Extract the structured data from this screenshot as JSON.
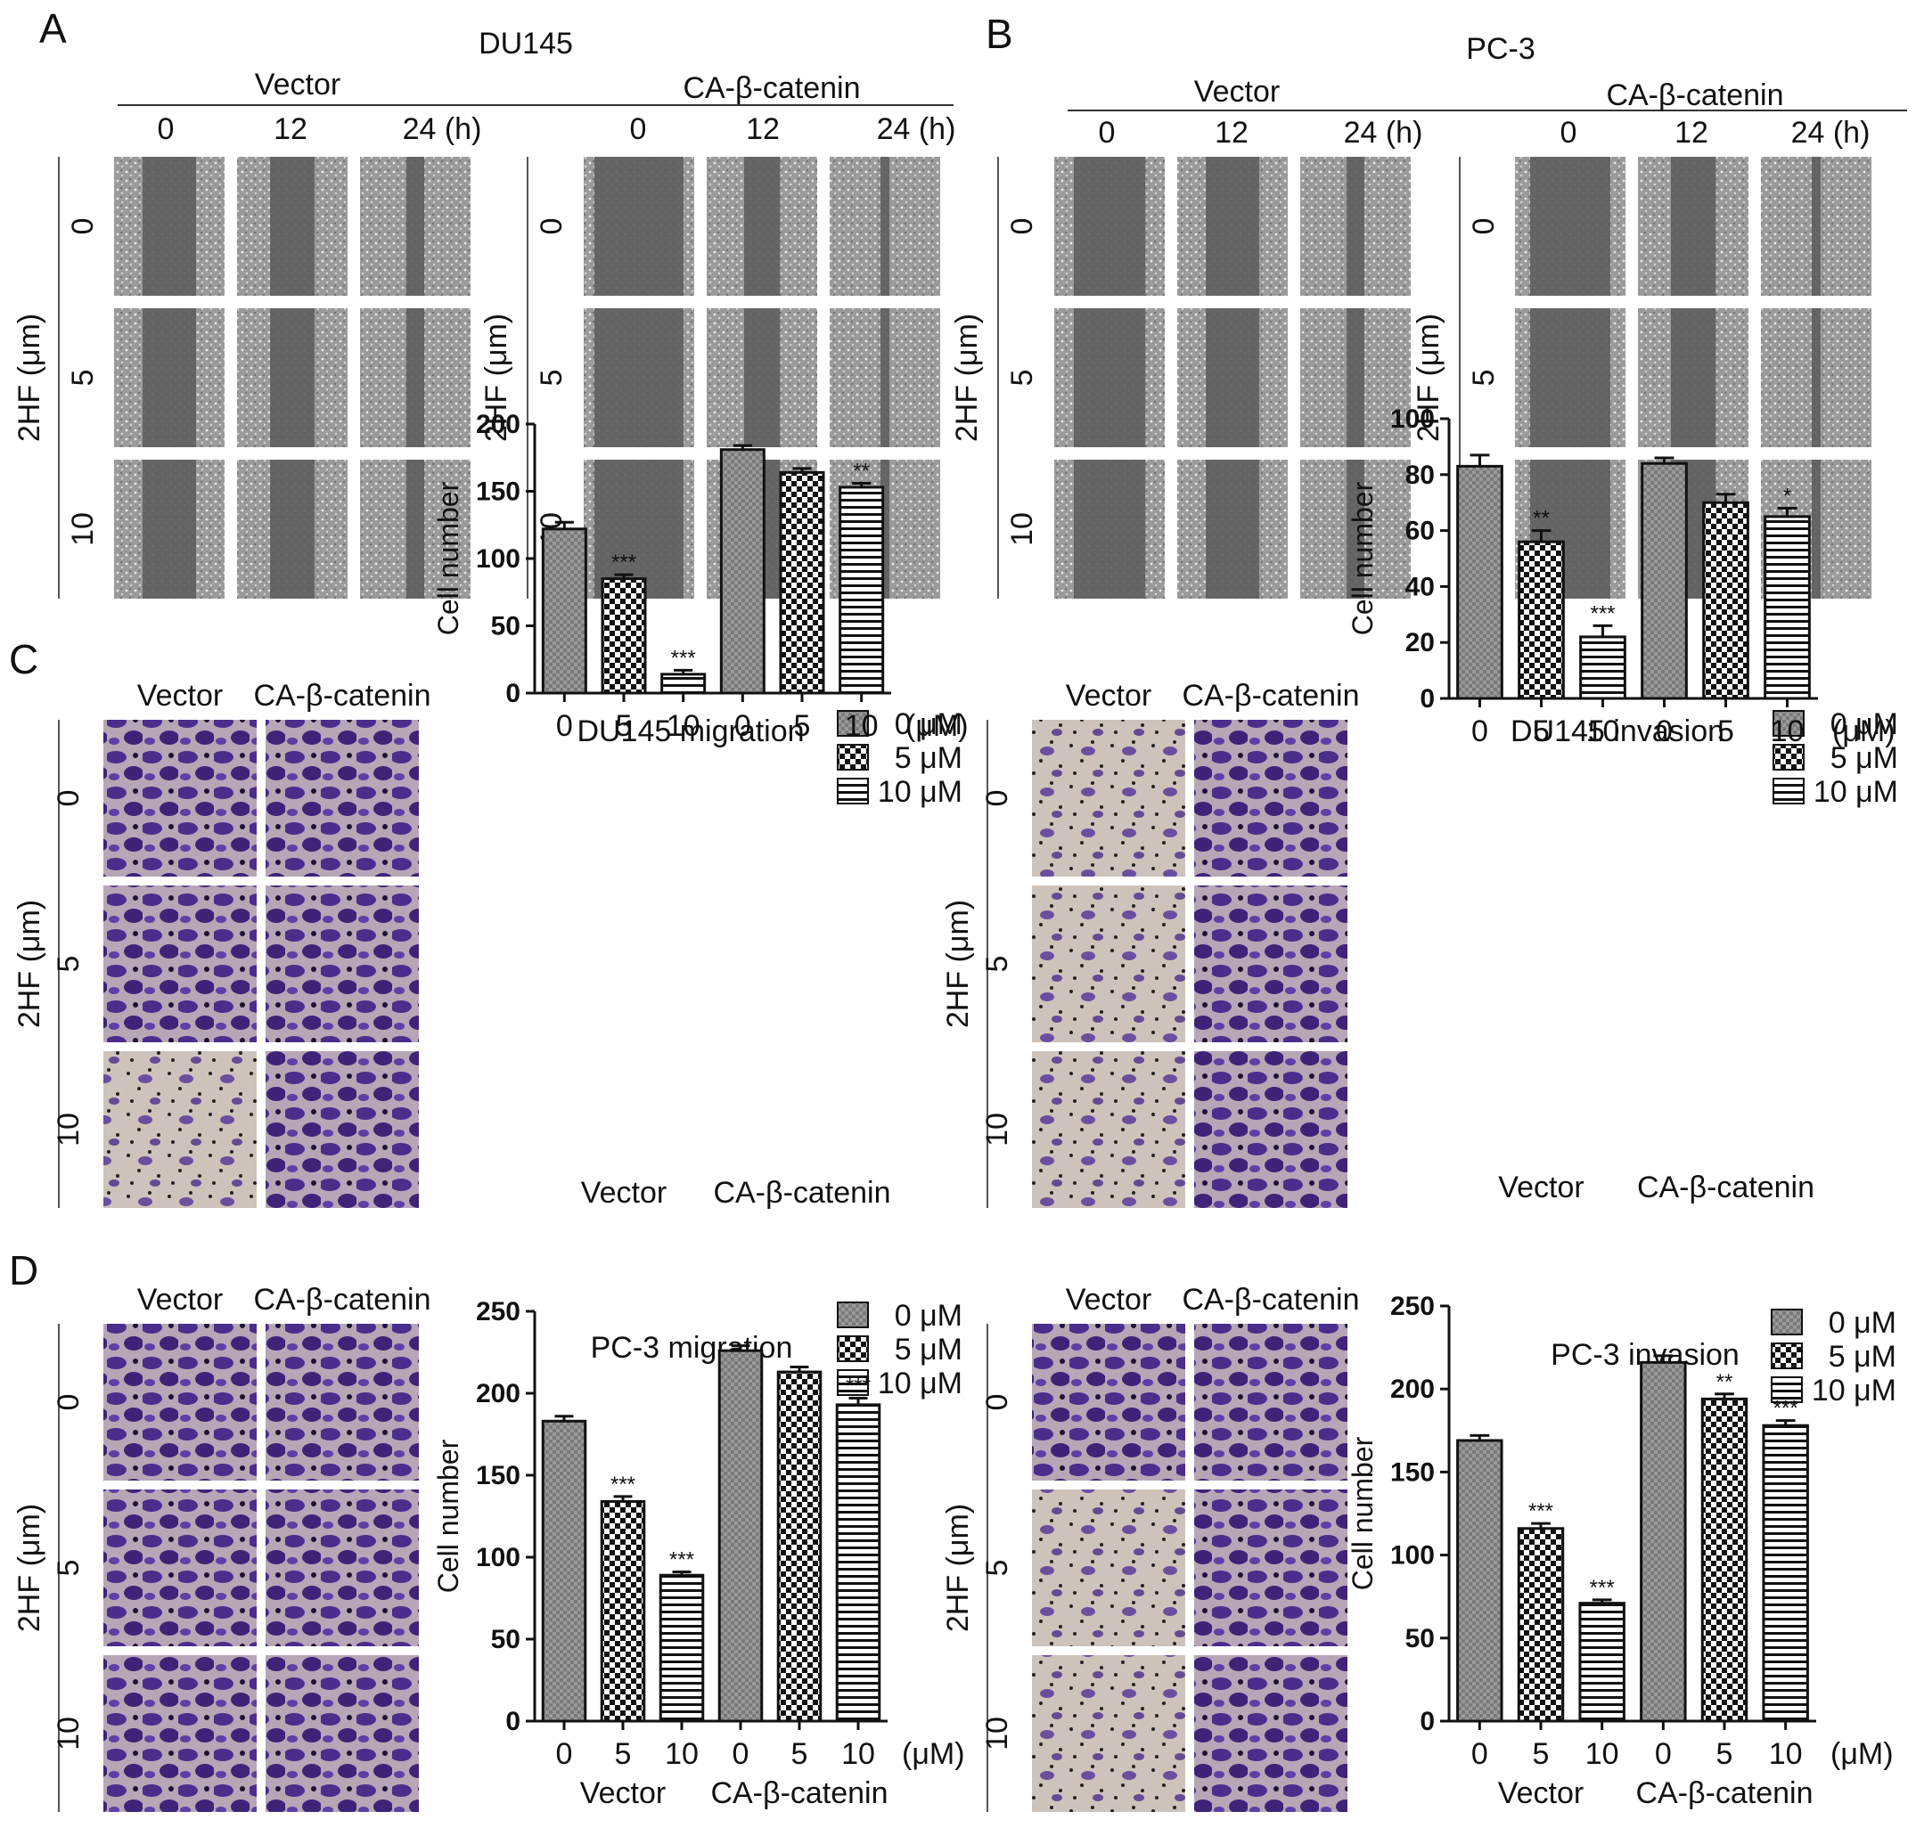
{
  "figure": {
    "panels": [
      "A",
      "B",
      "C",
      "D"
    ],
    "A": {
      "cell_line": "DU145",
      "groups": [
        "Vector",
        "CA-β-catenin"
      ],
      "times": [
        "0",
        "12",
        "24 (h)"
      ],
      "doses": [
        "0",
        "5",
        "10"
      ],
      "ylabel": "2HF (μm)"
    },
    "B": {
      "cell_line": "PC-3",
      "groups": [
        "Vector",
        "CA-β-catenin"
      ],
      "times": [
        "0",
        "12",
        "24 (h)"
      ],
      "doses": [
        "0",
        "5",
        "10"
      ],
      "ylabel": "2HF (μm)"
    },
    "C_micro": {
      "groups": [
        "Vector",
        "CA-β-catenin"
      ],
      "doses": [
        "0",
        "5",
        "10"
      ],
      "ylabel": "2HF (μm)"
    },
    "D_micro": {
      "groups": [
        "Vector",
        "CA-β-catenin"
      ],
      "doses": [
        "0",
        "5",
        "10"
      ],
      "ylabel": "2HF (μm)"
    },
    "legend": [
      "0 μM",
      "5 μM",
      "10 μM"
    ],
    "unit_label": "(μM)",
    "colors": {
      "ink": "#111111",
      "scratch_bg": "#6e6e6e",
      "stain_bg": "#c9bfb6",
      "stain_cells": "#4b2d8c"
    }
  },
  "chart_data": [
    {
      "type": "bar",
      "title": "DU145 migration",
      "ylabel": "Cell number",
      "ylim": [
        0,
        200
      ],
      "yticks": [
        0,
        50,
        100,
        150,
        200
      ],
      "categories": [
        "0",
        "5",
        "10",
        "0",
        "5",
        "10"
      ],
      "groups": [
        "Vector",
        "CA-β-catenin"
      ],
      "values": [
        122,
        85,
        14,
        181,
        164,
        153
      ],
      "errors": [
        5,
        3,
        3,
        3,
        3,
        3
      ],
      "significance": [
        "",
        "***",
        "***",
        "",
        "",
        "**"
      ],
      "legend": [
        "0 μM",
        "5 μM",
        "10 μM"
      ]
    },
    {
      "type": "bar",
      "title": "DU145 invasion",
      "ylabel": "Cell number",
      "ylim": [
        0,
        100
      ],
      "yticks": [
        0,
        20,
        40,
        60,
        80,
        100
      ],
      "categories": [
        "0",
        "5",
        "10",
        "0",
        "5",
        "10"
      ],
      "groups": [
        "Vector",
        "CA-β-catenin"
      ],
      "values": [
        83,
        56,
        22,
        84,
        70,
        65
      ],
      "errors": [
        4,
        4,
        4,
        2,
        3,
        3
      ],
      "significance": [
        "",
        "**",
        "***",
        "",
        "",
        "*"
      ],
      "legend": [
        "0 μM",
        "5 μM",
        "10 μM"
      ]
    },
    {
      "type": "bar",
      "title": "PC-3 migration",
      "ylabel": "Cell number",
      "ylim": [
        0,
        250
      ],
      "yticks": [
        0,
        50,
        100,
        150,
        200,
        250
      ],
      "categories": [
        "0",
        "5",
        "10",
        "0",
        "5",
        "10"
      ],
      "groups": [
        "Vector",
        "CA-β-catenin"
      ],
      "values": [
        183,
        134,
        89,
        226,
        213,
        193
      ],
      "errors": [
        3,
        3,
        2,
        3,
        3,
        4
      ],
      "significance": [
        "",
        "***",
        "***",
        "",
        "",
        "***"
      ],
      "legend": [
        "0 μM",
        "5 μM",
        "10 μM"
      ]
    },
    {
      "type": "bar",
      "title": "PC-3 invasion",
      "ylabel": "Cell number",
      "ylim": [
        0,
        250
      ],
      "yticks": [
        0,
        50,
        100,
        150,
        200,
        250
      ],
      "categories": [
        "0",
        "5",
        "10",
        "0",
        "5",
        "10"
      ],
      "groups": [
        "Vector",
        "CA-β-catenin"
      ],
      "values": [
        169,
        116,
        71,
        216,
        194,
        178
      ],
      "errors": [
        3,
        3,
        2,
        4,
        3,
        3
      ],
      "significance": [
        "",
        "***",
        "***",
        "",
        "**",
        "***"
      ],
      "legend": [
        "0 μM",
        "5 μM",
        "10 μM"
      ]
    }
  ]
}
